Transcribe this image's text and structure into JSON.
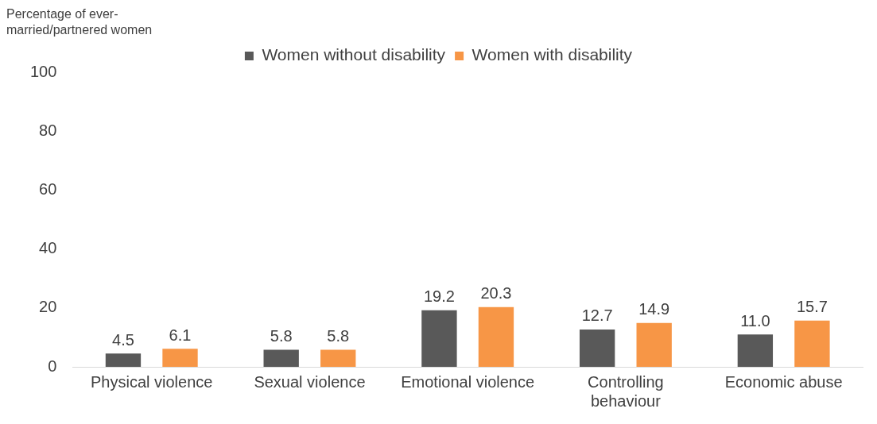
{
  "chart_data": {
    "type": "bar",
    "ylabel": "Percentage of ever-married/partnered women",
    "categories": [
      "Physical violence",
      "Sexual violence",
      "Emotional violence",
      "Controlling behaviour",
      "Economic abuse"
    ],
    "series": [
      {
        "name": "Women without disability",
        "color": "#595959",
        "values": [
          4.5,
          5.8,
          19.2,
          12.7,
          11.0
        ],
        "value_labels": [
          "4.5",
          "5.8",
          "19.2",
          "12.7",
          "11.0"
        ]
      },
      {
        "name": "Women with disability",
        "color": "#f79646",
        "values": [
          6.1,
          5.8,
          20.3,
          14.9,
          15.7
        ],
        "value_labels": [
          "6.1",
          "5.8",
          "20.3",
          "14.9",
          "15.7"
        ]
      }
    ],
    "ylim": [
      0,
      100
    ],
    "yticks": [
      0,
      20,
      40,
      60,
      80,
      100
    ],
    "legend": "top",
    "grid": false
  }
}
